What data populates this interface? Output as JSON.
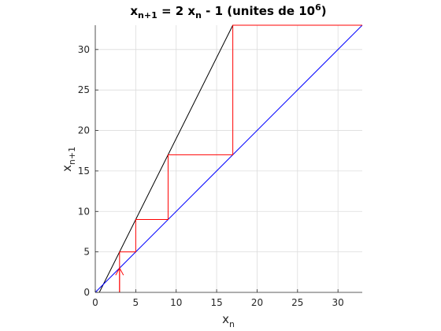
{
  "chart_data": {
    "type": "line",
    "title": {
      "lhs_base": "x",
      "lhs_sub": "n+1",
      "mid": " = 2 x",
      "rhs_sub": "n",
      "rest": " - 1 (unites de 10",
      "sup": "6",
      "close": ")"
    },
    "xlabel": {
      "base": "x",
      "sub": "n"
    },
    "ylabel": {
      "base": "x",
      "sub": "n+1"
    },
    "xlim": [
      0,
      33
    ],
    "ylim": [
      0,
      33
    ],
    "xticks": [
      0,
      5,
      10,
      15,
      20,
      25,
      30
    ],
    "yticks": [
      0,
      5,
      10,
      15,
      20,
      25,
      30
    ],
    "grid": true,
    "series": [
      {
        "type": "line",
        "color": "#000000",
        "x": [
          0.5,
          17
        ],
        "y": [
          0,
          33
        ]
      },
      {
        "type": "line",
        "color": "#0000ff",
        "x": [
          0,
          33
        ],
        "y": [
          0,
          33
        ]
      },
      {
        "type": "cobweb",
        "color": "#ff0000",
        "x": [
          3,
          3,
          5,
          5,
          9,
          9,
          17,
          17,
          33
        ],
        "y": [
          0,
          5,
          5,
          9,
          9,
          17,
          17,
          33,
          33
        ]
      }
    ],
    "annotations": [
      {
        "type": "arrow",
        "color": "#ff0000",
        "x": 3,
        "y_from": 0,
        "y_to": 3
      }
    ]
  }
}
